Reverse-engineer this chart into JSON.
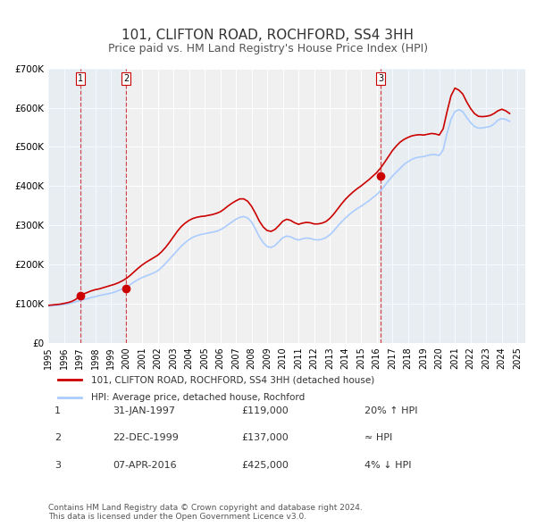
{
  "title": "101, CLIFTON ROAD, ROCHFORD, SS4 3HH",
  "subtitle": "Price paid vs. HM Land Registry's House Price Index (HPI)",
  "title_fontsize": 11,
  "subtitle_fontsize": 9,
  "background_color": "#ffffff",
  "plot_bg_color": "#f0f0f0",
  "grid_color": "#ffffff",
  "hpi_color": "#aaccff",
  "price_color": "#cc0000",
  "sale_marker_color": "#cc0000",
  "ylim": [
    0,
    700000
  ],
  "yticks": [
    0,
    100000,
    200000,
    300000,
    400000,
    500000,
    600000,
    700000
  ],
  "ytick_labels": [
    "£0",
    "£100K",
    "£200K",
    "£300K",
    "£400K",
    "£500K",
    "£600K",
    "£700K"
  ],
  "xlim_start": 1995.0,
  "xlim_end": 2025.5,
  "xtick_years": [
    1995,
    1996,
    1997,
    1998,
    1999,
    2000,
    2001,
    2002,
    2003,
    2004,
    2005,
    2006,
    2007,
    2008,
    2009,
    2010,
    2011,
    2012,
    2013,
    2014,
    2015,
    2016,
    2017,
    2018,
    2019,
    2020,
    2021,
    2022,
    2023,
    2024,
    2025
  ],
  "sale_points": [
    {
      "year": 1997.08,
      "price": 119000,
      "label": "1"
    },
    {
      "year": 1999.97,
      "price": 137000,
      "label": "2"
    },
    {
      "year": 2016.27,
      "price": 425000,
      "label": "3"
    }
  ],
  "vline_years": [
    1997.08,
    1999.97,
    2016.27
  ],
  "legend_entries": [
    "101, CLIFTON ROAD, ROCHFORD, SS4 3HH (detached house)",
    "HPI: Average price, detached house, Rochford"
  ],
  "table_rows": [
    {
      "num": "1",
      "date": "31-JAN-1997",
      "price": "£119,000",
      "rel": "20% ↑ HPI"
    },
    {
      "num": "2",
      "date": "22-DEC-1999",
      "price": "£137,000",
      "rel": "≈ HPI"
    },
    {
      "num": "3",
      "date": "07-APR-2016",
      "price": "£425,000",
      "rel": "4% ↓ HPI"
    }
  ],
  "footnote": "Contains HM Land Registry data © Crown copyright and database right 2024.\nThis data is licensed under the Open Government Licence v3.0.",
  "hpi_data_x": [
    1995.0,
    1995.25,
    1995.5,
    1995.75,
    1996.0,
    1996.25,
    1996.5,
    1996.75,
    1997.0,
    1997.25,
    1997.5,
    1997.75,
    1998.0,
    1998.25,
    1998.5,
    1998.75,
    1999.0,
    1999.25,
    1999.5,
    1999.75,
    2000.0,
    2000.25,
    2000.5,
    2000.75,
    2001.0,
    2001.25,
    2001.5,
    2001.75,
    2002.0,
    2002.25,
    2002.5,
    2002.75,
    2003.0,
    2003.25,
    2003.5,
    2003.75,
    2004.0,
    2004.25,
    2004.5,
    2004.75,
    2005.0,
    2005.25,
    2005.5,
    2005.75,
    2006.0,
    2006.25,
    2006.5,
    2006.75,
    2007.0,
    2007.25,
    2007.5,
    2007.75,
    2008.0,
    2008.25,
    2008.5,
    2008.75,
    2009.0,
    2009.25,
    2009.5,
    2009.75,
    2010.0,
    2010.25,
    2010.5,
    2010.75,
    2011.0,
    2011.25,
    2011.5,
    2011.75,
    2012.0,
    2012.25,
    2012.5,
    2012.75,
    2013.0,
    2013.25,
    2013.5,
    2013.75,
    2014.0,
    2014.25,
    2014.5,
    2014.75,
    2015.0,
    2015.25,
    2015.5,
    2015.75,
    2016.0,
    2016.25,
    2016.5,
    2016.75,
    2017.0,
    2017.25,
    2017.5,
    2017.75,
    2018.0,
    2018.25,
    2018.5,
    2018.75,
    2019.0,
    2019.25,
    2019.5,
    2019.75,
    2020.0,
    2020.25,
    2020.5,
    2020.75,
    2021.0,
    2021.25,
    2021.5,
    2021.75,
    2022.0,
    2022.25,
    2022.5,
    2022.75,
    2023.0,
    2023.25,
    2023.5,
    2023.75,
    2024.0,
    2024.25,
    2024.5
  ],
  "hpi_data_y": [
    93000,
    94000,
    95000,
    96000,
    97000,
    99000,
    101000,
    104000,
    107000,
    110000,
    112000,
    115000,
    117000,
    120000,
    122000,
    124000,
    126000,
    129000,
    133000,
    137000,
    142000,
    148000,
    155000,
    161000,
    166000,
    170000,
    174000,
    178000,
    183000,
    192000,
    202000,
    213000,
    224000,
    235000,
    246000,
    255000,
    263000,
    269000,
    273000,
    276000,
    278000,
    280000,
    282000,
    284000,
    288000,
    294000,
    301000,
    308000,
    315000,
    320000,
    322000,
    318000,
    308000,
    290000,
    270000,
    255000,
    245000,
    243000,
    248000,
    258000,
    268000,
    272000,
    270000,
    265000,
    262000,
    265000,
    267000,
    266000,
    263000,
    262000,
    264000,
    268000,
    275000,
    285000,
    297000,
    308000,
    318000,
    327000,
    335000,
    342000,
    348000,
    355000,
    362000,
    370000,
    378000,
    388000,
    400000,
    413000,
    425000,
    435000,
    445000,
    455000,
    462000,
    468000,
    472000,
    474000,
    475000,
    478000,
    480000,
    480000,
    478000,
    492000,
    535000,
    570000,
    590000,
    595000,
    590000,
    575000,
    562000,
    552000,
    548000,
    548000,
    550000,
    552000,
    558000,
    568000,
    572000,
    570000,
    565000
  ],
  "price_data_x": [
    1995.0,
    1995.25,
    1995.5,
    1995.75,
    1996.0,
    1996.25,
    1996.5,
    1996.75,
    1997.0,
    1997.25,
    1997.5,
    1997.75,
    1998.0,
    1998.25,
    1998.5,
    1998.75,
    1999.0,
    1999.25,
    1999.5,
    1999.75,
    2000.0,
    2000.25,
    2000.5,
    2000.75,
    2001.0,
    2001.25,
    2001.5,
    2001.75,
    2002.0,
    2002.25,
    2002.5,
    2002.75,
    2003.0,
    2003.25,
    2003.5,
    2003.75,
    2004.0,
    2004.25,
    2004.5,
    2004.75,
    2005.0,
    2005.25,
    2005.5,
    2005.75,
    2006.0,
    2006.25,
    2006.5,
    2006.75,
    2007.0,
    2007.25,
    2007.5,
    2007.75,
    2008.0,
    2008.25,
    2008.5,
    2008.75,
    2009.0,
    2009.25,
    2009.5,
    2009.75,
    2010.0,
    2010.25,
    2010.5,
    2010.75,
    2011.0,
    2011.25,
    2011.5,
    2011.75,
    2012.0,
    2012.25,
    2012.5,
    2012.75,
    2013.0,
    2013.25,
    2013.5,
    2013.75,
    2014.0,
    2014.25,
    2014.5,
    2014.75,
    2015.0,
    2015.25,
    2015.5,
    2015.75,
    2016.0,
    2016.25,
    2016.5,
    2016.75,
    2017.0,
    2017.25,
    2017.5,
    2017.75,
    2018.0,
    2018.25,
    2018.5,
    2018.75,
    2019.0,
    2019.25,
    2019.5,
    2019.75,
    2020.0,
    2020.25,
    2020.5,
    2020.75,
    2021.0,
    2021.25,
    2021.5,
    2021.75,
    2022.0,
    2022.25,
    2022.5,
    2022.75,
    2023.0,
    2023.25,
    2023.5,
    2023.75,
    2024.0,
    2024.25,
    2024.5
  ],
  "price_data_y": [
    95000,
    96000,
    97000,
    98000,
    100000,
    102000,
    105000,
    110000,
    119000,
    124000,
    128000,
    132000,
    135000,
    137000,
    140000,
    143000,
    146000,
    149000,
    153000,
    158000,
    164000,
    172000,
    181000,
    190000,
    198000,
    205000,
    211000,
    217000,
    223000,
    232000,
    243000,
    256000,
    270000,
    284000,
    296000,
    305000,
    312000,
    317000,
    320000,
    322000,
    323000,
    325000,
    327000,
    330000,
    334000,
    341000,
    349000,
    356000,
    362000,
    367000,
    367000,
    361000,
    348000,
    330000,
    310000,
    295000,
    286000,
    284000,
    289000,
    299000,
    310000,
    315000,
    312000,
    306000,
    302000,
    305000,
    307000,
    306000,
    303000,
    303000,
    305000,
    309000,
    317000,
    328000,
    341000,
    354000,
    366000,
    376000,
    385000,
    393000,
    400000,
    408000,
    416000,
    425000,
    434000,
    446000,
    460000,
    475000,
    490000,
    502000,
    512000,
    519000,
    524000,
    528000,
    530000,
    531000,
    530000,
    532000,
    534000,
    533000,
    530000,
    546000,
    590000,
    630000,
    650000,
    645000,
    635000,
    615000,
    598000,
    585000,
    578000,
    577000,
    578000,
    580000,
    585000,
    592000,
    596000,
    592000,
    585000
  ]
}
